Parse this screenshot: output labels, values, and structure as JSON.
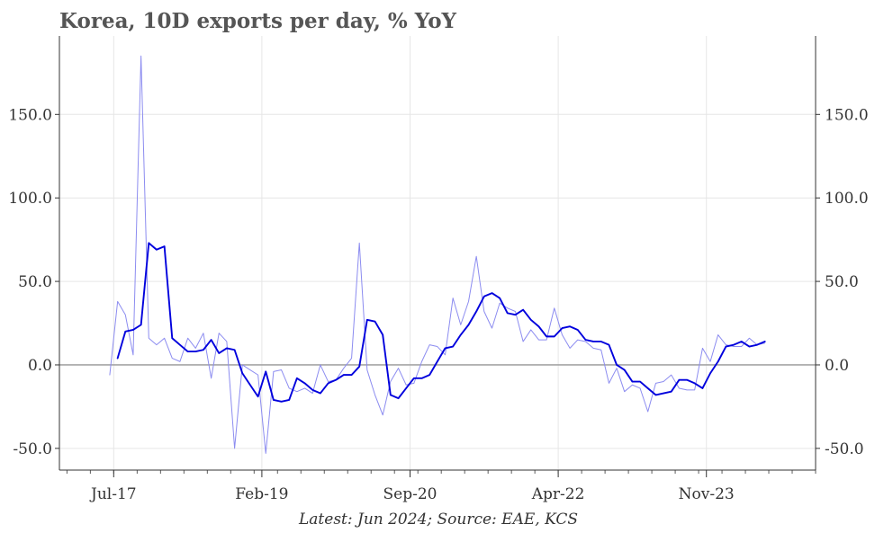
{
  "chart_data": {
    "type": "line",
    "title": "Korea, 10D exports per day, % YoY",
    "caption": "Latest: Jun 2024; Source: EAE, KCS",
    "xlabel": "",
    "ylabel": "",
    "x_ticks": [
      "Jul-17",
      "Feb-19",
      "Sep-20",
      "Apr-22",
      "Nov-23"
    ],
    "y_ticks": [
      "-50.0",
      "0.0",
      "50.0",
      "100.0",
      "150.0"
    ],
    "ylim": [
      -63,
      197
    ],
    "grid": true,
    "zero_line": true,
    "right_axis_mirror": true,
    "colors": {
      "raw": "#8c8cf0",
      "smooth": "#0000dd",
      "zero": "#a6a6a6",
      "grid": "#e6e6e6",
      "title": "#555555"
    },
    "series": [
      {
        "x": [
          2017.542,
          2017.625,
          2017.708,
          2017.792,
          2017.875,
          2017.958,
          2018.042,
          2018.125,
          2018.208,
          2018.292,
          2018.375,
          2018.458,
          2018.542,
          2018.625,
          2018.708,
          2018.792,
          2018.875,
          2018.958,
          2019.042,
          2019.125,
          2019.208,
          2019.292,
          2019.375,
          2019.458,
          2019.542,
          2019.625,
          2019.708,
          2019.792,
          2019.875,
          2019.958,
          2020.042,
          2020.125,
          2020.208,
          2020.292,
          2020.375,
          2020.458,
          2020.542,
          2020.625,
          2020.708,
          2020.792,
          2020.875,
          2020.958,
          2021.042,
          2021.125,
          2021.208,
          2021.292,
          2021.375,
          2021.458,
          2021.542,
          2021.625,
          2021.708,
          2021.792,
          2021.875,
          2021.958,
          2022.042,
          2022.125,
          2022.208,
          2022.292,
          2022.375,
          2022.458,
          2022.542,
          2022.625,
          2022.708,
          2022.792,
          2022.875,
          2022.958,
          2023.042,
          2023.125,
          2023.208,
          2023.292,
          2023.375,
          2023.458,
          2023.542,
          2023.625,
          2023.708,
          2023.792,
          2023.875,
          2023.958,
          2024.042,
          2024.125,
          2024.208,
          2024.292,
          2024.375,
          2024.458
        ],
        "values": [
          4,
          20,
          21,
          24,
          73,
          69,
          71,
          16,
          12,
          8,
          8,
          9,
          15,
          7,
          10,
          9,
          -5,
          -12,
          -19,
          -4,
          -21,
          -22,
          -21,
          -8,
          -11,
          -15,
          -17,
          -11,
          -9,
          -6,
          -6,
          -1,
          27,
          26,
          18,
          -18,
          -20,
          -14,
          -8,
          -8,
          -6,
          2,
          10,
          11,
          18,
          24,
          32,
          41,
          43,
          40,
          31,
          30,
          33,
          27,
          23,
          17,
          17,
          22,
          23,
          21,
          15,
          14,
          14,
          12,
          0,
          -3,
          -10,
          -10,
          -14,
          -18,
          -17,
          -16,
          -9,
          -9,
          -11,
          -14,
          -5,
          2,
          11,
          12,
          14,
          11,
          12,
          14
        ],
        "color": "#0000dd"
      },
      {
        "x": [
          2017.458,
          2017.542,
          2017.625,
          2017.708,
          2017.792,
          2017.875,
          2017.958,
          2018.042,
          2018.125,
          2018.208,
          2018.292,
          2018.375,
          2018.458,
          2018.542,
          2018.625,
          2018.708,
          2018.792,
          2018.875,
          2018.958,
          2019.042,
          2019.125,
          2019.208,
          2019.292,
          2019.375,
          2019.458,
          2019.542,
          2019.625,
          2019.708,
          2019.792,
          2019.875,
          2019.958,
          2020.042,
          2020.125,
          2020.208,
          2020.292,
          2020.375,
          2020.458,
          2020.542,
          2020.625,
          2020.708,
          2020.792,
          2020.875,
          2020.958,
          2021.042,
          2021.125,
          2021.208,
          2021.292,
          2021.375,
          2021.458,
          2021.542,
          2021.625,
          2021.708,
          2021.792,
          2021.875,
          2021.958,
          2022.042,
          2022.125,
          2022.208,
          2022.292,
          2022.375,
          2022.458,
          2022.542,
          2022.625,
          2022.708,
          2022.792,
          2022.875,
          2022.958,
          2023.042,
          2023.125,
          2023.208,
          2023.292,
          2023.375,
          2023.458,
          2023.542,
          2023.625,
          2023.708,
          2023.792,
          2023.875,
          2023.958,
          2024.042,
          2024.125,
          2024.208,
          2024.292,
          2024.375,
          2024.458
        ],
        "values": [
          -6,
          38,
          30,
          6,
          185,
          16,
          12,
          16,
          4,
          2,
          16,
          10,
          19,
          -8,
          19,
          14,
          -50,
          0,
          -3,
          -6,
          -53,
          -4,
          -3,
          -14,
          -16,
          -14,
          -17,
          0,
          -10,
          -9,
          -2,
          4,
          73,
          -3,
          -18,
          -30,
          -10,
          -2,
          -12,
          -11,
          2,
          12,
          11,
          6,
          40,
          24,
          38,
          65,
          32,
          22,
          37,
          34,
          32,
          14,
          21,
          15,
          15,
          34,
          18,
          10,
          15,
          14,
          10,
          9,
          -11,
          -2,
          -16,
          -12,
          -14,
          -28,
          -11,
          -10,
          -6,
          -14,
          -15,
          -15,
          10,
          2,
          18,
          12,
          11,
          11,
          16,
          12,
          13
        ],
        "color": "#8c8cf0"
      }
    ]
  }
}
